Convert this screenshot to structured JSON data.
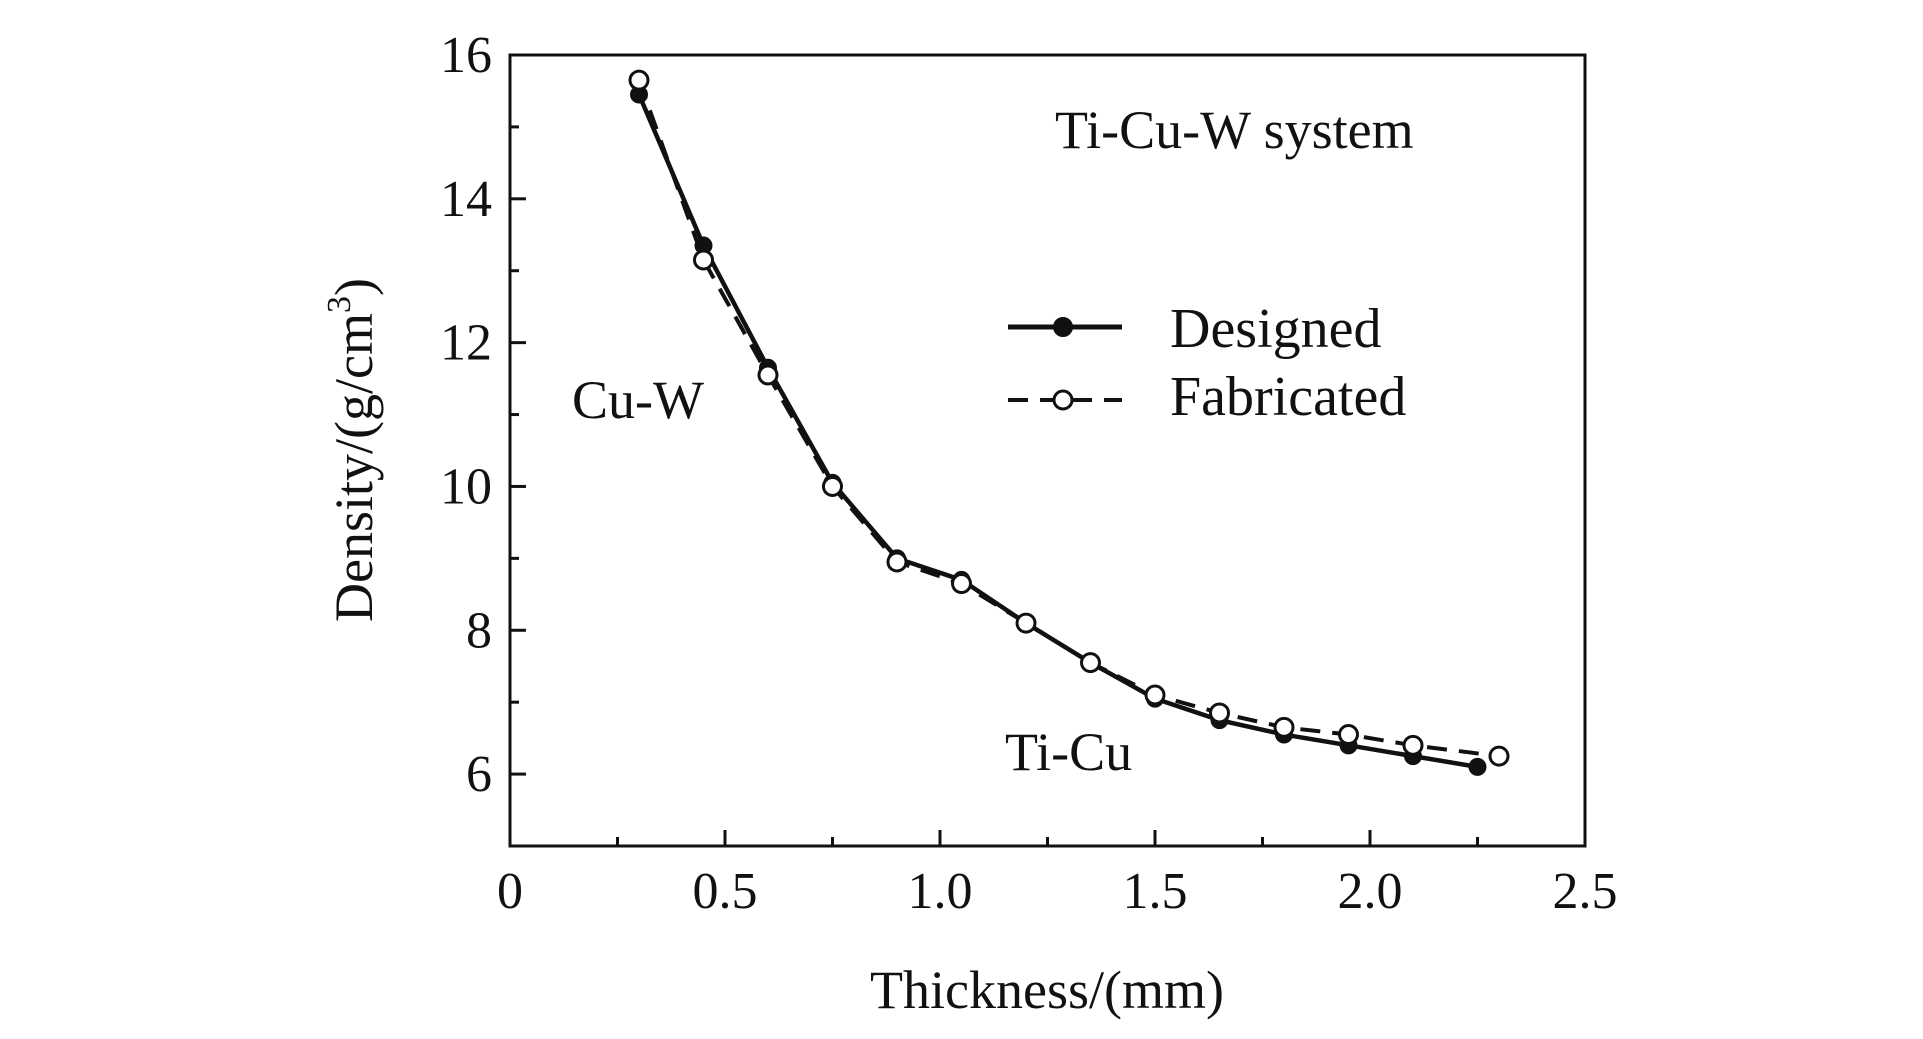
{
  "chart_data": {
    "type": "line",
    "title": "",
    "xlabel": "Thickness/(mm)",
    "ylabel_main": "Density/(g/cm",
    "ylabel_sup": "3",
    "ylabel_close": ")",
    "xlim": [
      0,
      2.5
    ],
    "ylim": [
      5,
      16
    ],
    "grid": false,
    "x_major_ticks": [
      0,
      0.5,
      1.0,
      1.5,
      2.0,
      2.5
    ],
    "x_tick_labels": [
      "0",
      "0.5",
      "1.0",
      "1.5",
      "2.0",
      "2.5"
    ],
    "x_minor_ticks": [
      0.25,
      0.75,
      1.25,
      1.75,
      2.25
    ],
    "y_major_ticks": [
      6,
      8,
      10,
      12,
      14,
      16
    ],
    "y_tick_labels": [
      "6",
      "8",
      "10",
      "12",
      "14",
      "16"
    ],
    "y_minor_ticks": [
      5,
      7,
      9,
      11,
      13,
      15
    ],
    "legend_position": "upper-right",
    "series": [
      {
        "name": "Designed",
        "style": "solid-filled",
        "x": [
          0.3,
          0.45,
          0.6,
          0.75,
          0.9,
          1.05,
          1.2,
          1.35,
          1.5,
          1.65,
          1.8,
          1.95,
          2.1,
          2.25
        ],
        "y": [
          15.45,
          13.35,
          11.65,
          10.05,
          9.0,
          8.7,
          8.1,
          7.55,
          7.05,
          6.75,
          6.55,
          6.4,
          6.25,
          6.1
        ]
      },
      {
        "name": "Fabricated",
        "style": "dashed-open",
        "x": [
          0.3,
          0.45,
          0.6,
          0.75,
          0.9,
          1.05,
          1.2,
          1.35,
          1.5,
          1.65,
          1.8,
          1.95,
          2.1,
          2.3
        ],
        "y": [
          15.65,
          13.15,
          11.55,
          10.0,
          8.95,
          8.65,
          8.1,
          7.55,
          7.1,
          6.85,
          6.65,
          6.55,
          6.4,
          6.25
        ]
      }
    ],
    "annotations": [
      {
        "text": "Ti-Cu-W system",
        "position": "top-right"
      },
      {
        "text": "Cu-W",
        "position": "upper-left"
      },
      {
        "text": "Ti-Cu",
        "position": "lower-middle"
      }
    ]
  }
}
